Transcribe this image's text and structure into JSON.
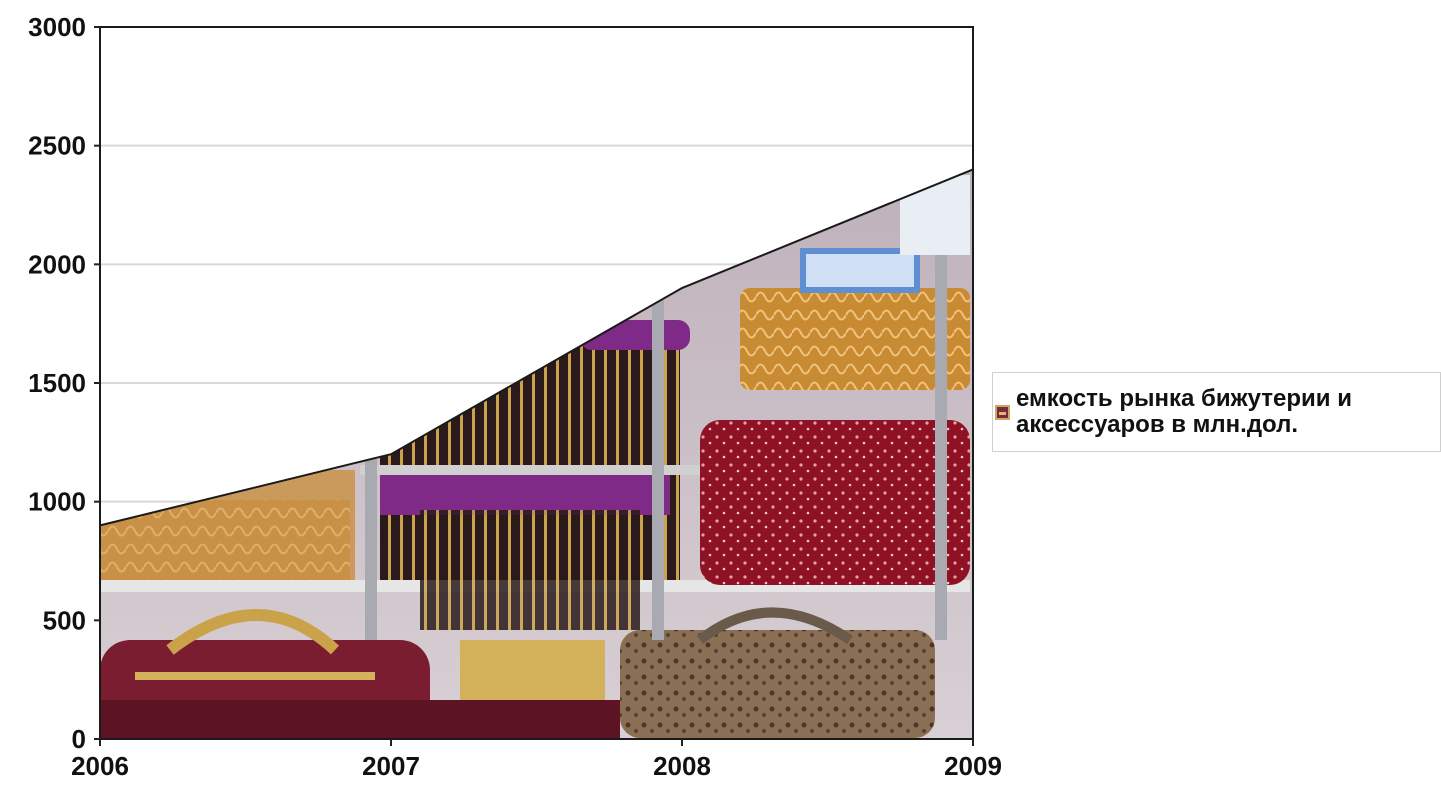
{
  "chart_data": {
    "type": "area",
    "x": [
      "2006",
      "2007",
      "2008",
      "2009"
    ],
    "series": [
      {
        "name": "емкость рынка бижутерии и аксессуаров в млн.дол.",
        "values": [
          900,
          1200,
          1900,
          2400
        ]
      }
    ],
    "xlabel": "",
    "ylabel": "",
    "ylim": [
      0,
      3000
    ],
    "yticks": [
      "0",
      "500",
      "1000",
      "1500",
      "2000",
      "2500",
      "3000"
    ],
    "grid": true,
    "legend_position": "right",
    "fill": "photo-texture-jewelry-and-handbags"
  },
  "legend": {
    "label": "емкость рынка бижутерии и\nаксессуаров в млн.дол."
  }
}
